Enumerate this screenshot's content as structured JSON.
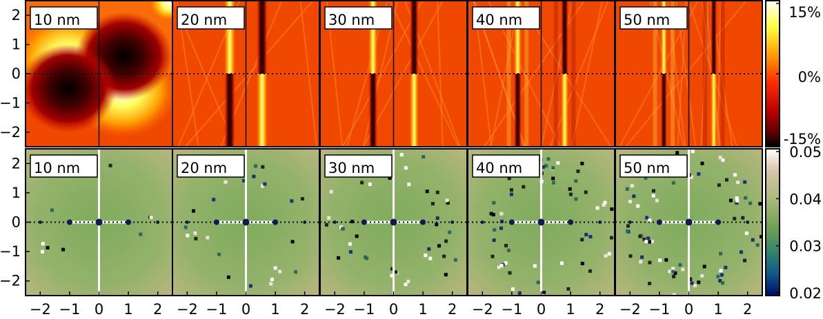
{
  "chart_data": [
    {
      "type": "heatmap",
      "row": "top",
      "panels": [
        "10 nm",
        "20 nm",
        "30 nm",
        "40 nm",
        "50 nm"
      ],
      "xlim": [
        -2.5,
        2.5
      ],
      "ylim": [
        -2.5,
        2.5
      ],
      "xticks": [
        -2,
        -1,
        0,
        1,
        2
      ],
      "yticks": [
        -2,
        -1,
        0,
        1,
        2
      ],
      "colorbar": {
        "ticks": [
          "15%",
          "0%",
          "-15%"
        ],
        "range": [
          -15,
          15
        ],
        "colormap": "hot"
      }
    },
    {
      "type": "heatmap",
      "row": "bottom",
      "panels": [
        "10 nm",
        "20 nm",
        "30 nm",
        "40 nm",
        "50 nm"
      ],
      "xlim": [
        -2.5,
        2.5
      ],
      "ylim": [
        -2.5,
        2.5
      ],
      "xticks": [
        -2,
        -1,
        0,
        1,
        2
      ],
      "yticks": [
        -2,
        -1,
        0,
        1,
        2
      ],
      "colorbar": {
        "ticks": [
          "0.05",
          "0.04",
          "0.03",
          "0.02"
        ],
        "range": [
          0.02,
          0.05
        ],
        "colormap": "gist_earth"
      },
      "markers_y0": [
        -2,
        -1,
        0,
        1,
        2
      ]
    }
  ],
  "axis_ticks": {
    "x": [
      "−2",
      "−1",
      "0",
      "1",
      "2"
    ],
    "y": [
      "2",
      "1",
      "0",
      "−1",
      "−2"
    ]
  }
}
